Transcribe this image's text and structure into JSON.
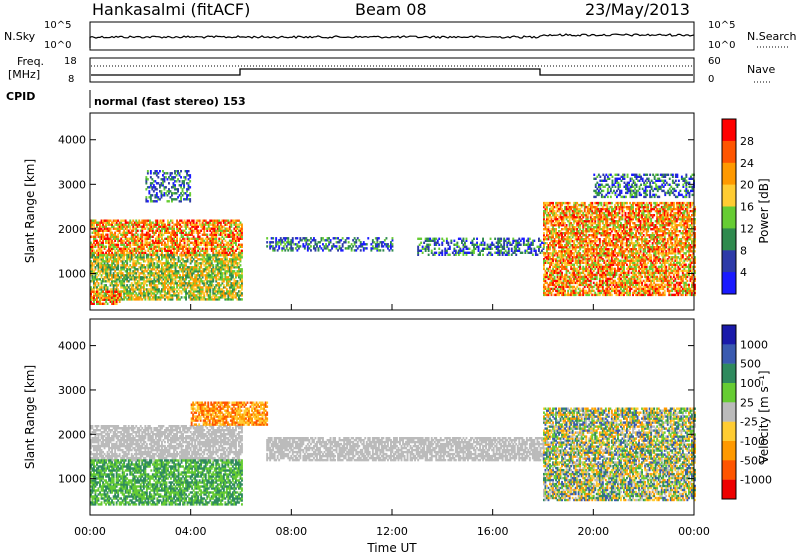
{
  "header": {
    "station": "Hankasalmi (fitACF)",
    "beam": "Beam 08",
    "date": "23/May/2013"
  },
  "noise_panel": {
    "left_label": "N.Sky",
    "left_ticks": [
      "10^5",
      "10^0"
    ],
    "right_label": "N.Search",
    "right_ticks": [
      "10^5",
      "10^0"
    ]
  },
  "freq_panel": {
    "left_label_line1": "Freq.",
    "left_label_line2": "[MHz]",
    "left_ticks": [
      "18",
      "8"
    ],
    "right_label": "Nave",
    "right_ticks": [
      "60",
      "0"
    ],
    "cpid_label": "CPID",
    "cpid_text": "normal (fast stereo) 153"
  },
  "colors": {
    "power_scale": [
      "#1a1aff",
      "#2d3aa8",
      "#2f8a4e",
      "#66cc33",
      "#ffcc33",
      "#ff9900",
      "#ff5500",
      "#ff0000"
    ],
    "velocity_scale": [
      "#1a1aaa",
      "#3a5ab0",
      "#2f8a5e",
      "#66cc33",
      "#bbbbbb",
      "#ffcc33",
      "#ff9900",
      "#ff5500",
      "#ee0000"
    ]
  },
  "chart_data": [
    {
      "type": "heatmap",
      "panel": "power",
      "xlabel": "Time UT",
      "ylabel": "Slant Range [km]",
      "xlim": [
        0,
        24
      ],
      "ylim": [
        180,
        4600
      ],
      "x_ticks": [
        "00:00",
        "04:00",
        "08:00",
        "12:00",
        "16:00",
        "20:00",
        "00:00"
      ],
      "y_ticks": [
        1000,
        2000,
        3000,
        4000
      ],
      "colorbar_label": "Power [dB]",
      "colorbar_ticks": [
        4,
        8,
        12,
        16,
        20,
        24,
        28
      ],
      "regions": [
        {
          "t": [
            0.0,
            6.0
          ],
          "r": [
            1400,
            2200
          ],
          "level": "high"
        },
        {
          "t": [
            0.0,
            6.0
          ],
          "r": [
            400,
            1400
          ],
          "level": "medium"
        },
        {
          "t": [
            0.0,
            1.2
          ],
          "r": [
            300,
            600
          ],
          "level": "high"
        },
        {
          "t": [
            2.2,
            4.0
          ],
          "r": [
            2600,
            3300
          ],
          "level": "low"
        },
        {
          "t": [
            7.0,
            12.0
          ],
          "r": [
            1500,
            1800
          ],
          "level": "low"
        },
        {
          "t": [
            13.0,
            18.0
          ],
          "r": [
            1400,
            1800
          ],
          "level": "low"
        },
        {
          "t": [
            18.0,
            24.0
          ],
          "r": [
            1300,
            2600
          ],
          "level": "high"
        },
        {
          "t": [
            18.0,
            24.0
          ],
          "r": [
            500,
            1300
          ],
          "level": "high"
        },
        {
          "t": [
            20.0,
            24.0
          ],
          "r": [
            2700,
            3200
          ],
          "level": "low"
        }
      ]
    },
    {
      "type": "heatmap",
      "panel": "velocity",
      "xlabel": "Time UT",
      "ylabel": "Slant Range [km]",
      "xlim": [
        0,
        24
      ],
      "ylim": [
        180,
        4600
      ],
      "x_ticks": [
        "00:00",
        "04:00",
        "08:00",
        "12:00",
        "16:00",
        "20:00",
        "00:00"
      ],
      "y_ticks": [
        1000,
        2000,
        3000,
        4000
      ],
      "colorbar_label": "Velocity [m s⁻¹]",
      "colorbar_ticks": [
        "1000",
        "500",
        "100",
        "25",
        "-25",
        "-100",
        "-500",
        "-1000"
      ],
      "regions": [
        {
          "t": [
            0.0,
            6.0
          ],
          "r": [
            1400,
            2200
          ],
          "level": "near-zero"
        },
        {
          "t": [
            0.0,
            6.0
          ],
          "r": [
            400,
            1400
          ],
          "level": "positive"
        },
        {
          "t": [
            4.0,
            7.0
          ],
          "r": [
            2200,
            2700
          ],
          "level": "negative"
        },
        {
          "t": [
            7.0,
            18.0
          ],
          "r": [
            1400,
            1900
          ],
          "level": "near-zero"
        },
        {
          "t": [
            18.0,
            24.0
          ],
          "r": [
            1300,
            2600
          ],
          "level": "mixed"
        },
        {
          "t": [
            18.0,
            24.0
          ],
          "r": [
            500,
            1300
          ],
          "level": "mixed"
        }
      ]
    }
  ]
}
